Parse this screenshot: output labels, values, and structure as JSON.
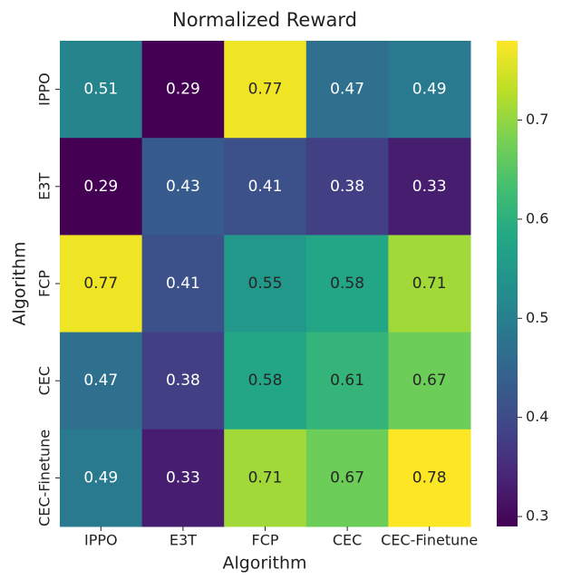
{
  "chart_data": {
    "type": "heatmap",
    "title": "Normalized Reward",
    "x_label": "Algorithm",
    "y_label": "Algorithm",
    "x_categories": [
      "IPPO",
      "E3T",
      "FCP",
      "CEC",
      "CEC-Finetune"
    ],
    "y_categories": [
      "IPPO",
      "E3T",
      "FCP",
      "CEC",
      "CEC-Finetune"
    ],
    "values": [
      [
        0.51,
        0.29,
        0.77,
        0.47,
        0.49
      ],
      [
        0.29,
        0.43,
        0.41,
        0.38,
        0.33
      ],
      [
        0.77,
        0.41,
        0.55,
        0.58,
        0.71
      ],
      [
        0.47,
        0.38,
        0.58,
        0.61,
        0.67
      ],
      [
        0.49,
        0.33,
        0.71,
        0.67,
        0.78
      ]
    ],
    "colormap": "viridis",
    "zlim": [
      0.29,
      0.78
    ],
    "colorbar_ticks": [
      0.3,
      0.4,
      0.5,
      0.6,
      0.7
    ]
  }
}
